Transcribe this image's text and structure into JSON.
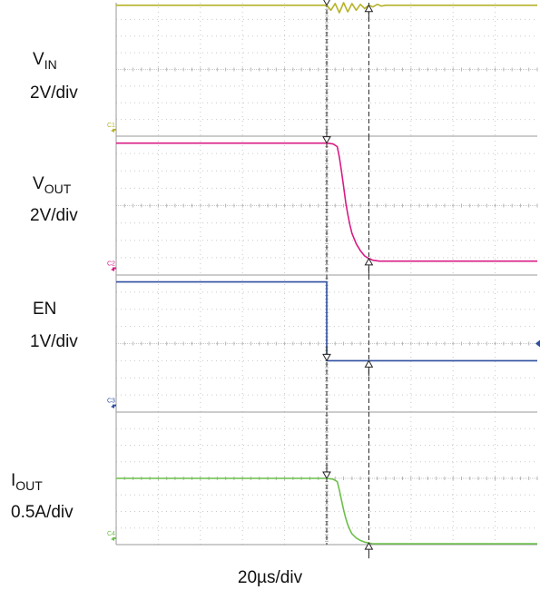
{
  "chart_data": [
    {
      "type": "line",
      "channel": "C1",
      "label_main": "V",
      "label_sub": "IN",
      "scale": "2V/div",
      "color": "#b7b32a",
      "ylim": [
        -8,
        0
      ],
      "x": [
        -100,
        -20,
        -5,
        0,
        2,
        4,
        6,
        8,
        10,
        12,
        14,
        16,
        18,
        20,
        22,
        24,
        26,
        28,
        30,
        40,
        100
      ],
      "y": [
        -0.15,
        -0.15,
        -0.15,
        -0.15,
        -0.45,
        -0.05,
        -0.6,
        0.0,
        -0.55,
        -0.05,
        -0.45,
        -0.1,
        -0.35,
        -0.15,
        -0.25,
        -0.1,
        -0.2,
        -0.15,
        -0.15,
        -0.15,
        -0.15
      ]
    },
    {
      "type": "line",
      "channel": "C2",
      "label_main": "V",
      "label_sub": "OUT",
      "scale": "2V/div",
      "color": "#d81b84",
      "ylim": [
        -8,
        0
      ],
      "x": [
        -100,
        -20,
        0,
        3,
        5,
        6,
        7,
        8,
        9,
        10,
        11,
        12,
        14,
        16,
        18,
        20,
        22,
        25,
        30,
        40,
        100
      ],
      "y": [
        -0.4,
        -0.4,
        -0.4,
        -0.45,
        -0.6,
        -1.2,
        -2.0,
        -2.9,
        -3.8,
        -4.5,
        -5.1,
        -5.6,
        -6.2,
        -6.6,
        -6.9,
        -7.05,
        -7.15,
        -7.2,
        -7.2,
        -7.2,
        -7.2
      ]
    },
    {
      "type": "line",
      "channel": "C3",
      "label_main": "EN",
      "label_sub": "",
      "scale": "1V/div",
      "color": "#2e4fa0",
      "ylim": [
        -8,
        0
      ],
      "x": [
        -100,
        -0.01,
        0,
        100
      ],
      "y": [
        -0.4,
        -0.4,
        -5.0,
        -5.0
      ]
    },
    {
      "type": "line",
      "channel": "C4",
      "label_main": "I",
      "label_sub": "OUT",
      "scale": "0.5A/div",
      "color": "#6cc04a",
      "ylim": [
        -8,
        0
      ],
      "x": [
        -100,
        -20,
        0,
        3,
        5,
        6,
        7,
        8,
        9,
        10,
        11,
        12,
        14,
        16,
        18,
        20,
        22,
        25,
        30,
        40,
        100
      ],
      "y": [
        -4.0,
        -4.0,
        -4.0,
        -4.05,
        -4.2,
        -4.7,
        -5.3,
        -5.9,
        -6.4,
        -6.8,
        -7.1,
        -7.35,
        -7.6,
        -7.75,
        -7.85,
        -7.9,
        -7.95,
        -7.95,
        -7.95,
        -7.95,
        -7.95
      ]
    }
  ],
  "x_unit": "µs",
  "xlim": [
    -100,
    100
  ],
  "cursors": [
    0,
    20
  ],
  "timebase": "20µs/div"
}
